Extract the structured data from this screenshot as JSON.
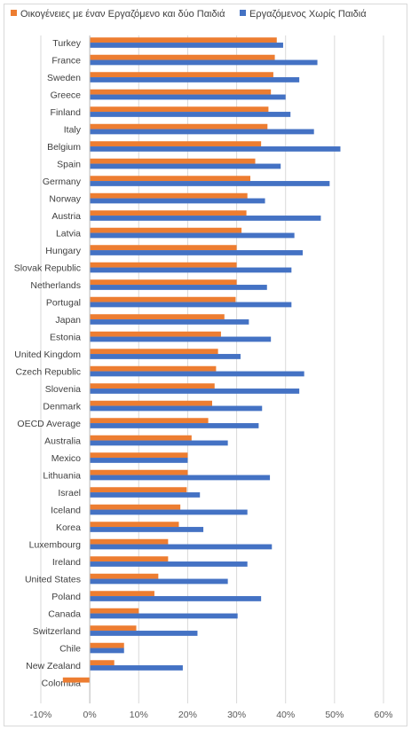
{
  "chart_data": {
    "type": "bar",
    "orientation": "horizontal",
    "categories": [
      "Turkey",
      "France",
      "Sweden",
      "Greece",
      "Finland",
      "Italy",
      "Belgium",
      "Spain",
      "Germany",
      "Norway",
      "Austria",
      "Latvia",
      "Hungary",
      "Slovak Republic",
      "Netherlands",
      "Portugal",
      "Japan",
      "Estonia",
      "United Kingdom",
      "Czech Republic",
      "Slovenia",
      "Denmark",
      "OECD Average",
      "Australia",
      "Mexico",
      "Lithuania",
      "Israel",
      "Iceland",
      "Korea",
      "Luxembourg",
      "Ireland",
      "United States",
      "Poland",
      "Canada",
      "Switzerland",
      "Chile",
      "New Zealand",
      "Colombia"
    ],
    "series": [
      {
        "name": "Οικογένειες  με έναν Εργαζόμενο και δύο Παιδιά",
        "color": "#ed7d31",
        "values": [
          38.2,
          37.8,
          37.5,
          37.0,
          36.5,
          36.3,
          35.0,
          33.8,
          32.8,
          32.2,
          32.0,
          31.0,
          30.0,
          30.0,
          30.0,
          29.8,
          27.5,
          26.8,
          26.2,
          25.8,
          25.5,
          25.0,
          24.2,
          20.8,
          20.0,
          20.0,
          19.8,
          18.5,
          18.2,
          16.0,
          16.0,
          14.0,
          13.2,
          10.0,
          9.5,
          7.0,
          5.0,
          -5.5
        ]
      },
      {
        "name": "Εργαζόμενος Χωρίς Παιδιά",
        "color": "#4472c4",
        "values": [
          39.5,
          46.5,
          42.8,
          40.0,
          41.0,
          45.8,
          51.2,
          39.0,
          49.0,
          35.8,
          47.2,
          41.8,
          43.5,
          41.2,
          36.2,
          41.2,
          32.5,
          37.0,
          30.8,
          43.8,
          42.8,
          35.2,
          34.5,
          28.2,
          20.0,
          36.8,
          22.5,
          32.2,
          23.2,
          37.2,
          32.2,
          28.2,
          35.0,
          30.2,
          22.0,
          7.0,
          19.0,
          0
        ]
      }
    ],
    "xlim": [
      -10,
      60
    ],
    "xticks": [
      -10,
      0,
      10,
      20,
      30,
      40,
      50,
      60
    ],
    "xtick_labels": [
      "-10%",
      "0%",
      "10%",
      "20%",
      "30%",
      "40%",
      "50%",
      "60%"
    ],
    "grid": "vertical",
    "legend_position": "top"
  }
}
